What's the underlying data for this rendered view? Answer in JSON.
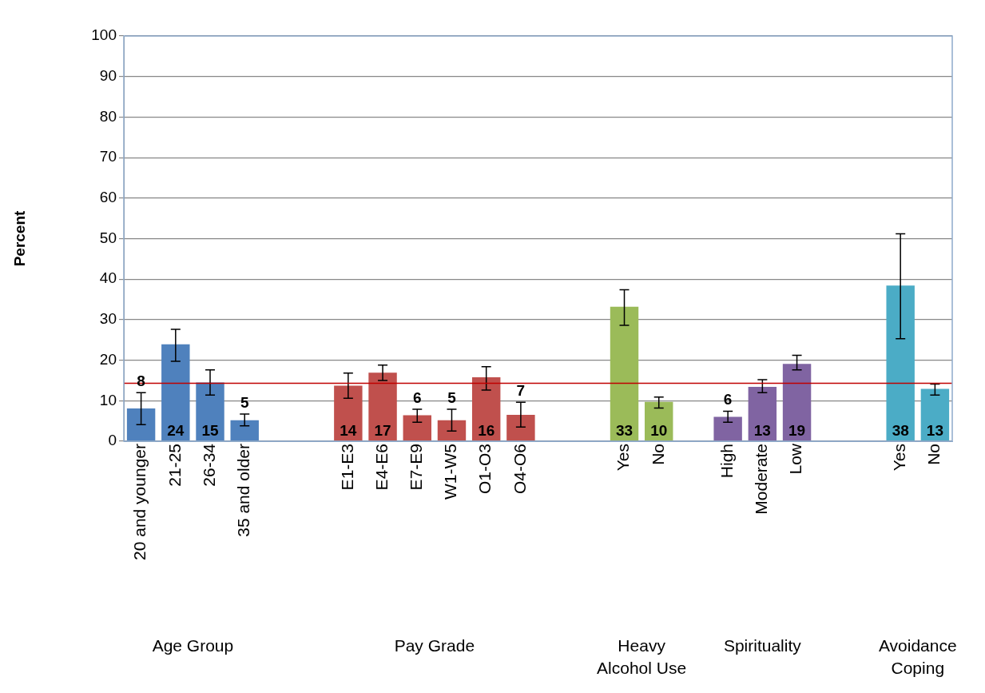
{
  "chart_data": {
    "type": "bar",
    "ylabel": "Percent",
    "categories": [
      "20 and younger",
      "21-25",
      "26-34",
      "35 and older",
      null,
      null,
      "E1-E3",
      "E4-E6",
      "E7-E9",
      "W1-W5",
      "O1-O3",
      "O4-O6",
      null,
      null,
      "Yes",
      "No",
      null,
      "High",
      "Moderate",
      "Low",
      null,
      null,
      "Yes",
      "No"
    ],
    "values": [
      8.1,
      23.9,
      14.5,
      5.2,
      null,
      null,
      13.7,
      16.9,
      6.4,
      5.2,
      15.8,
      6.5,
      null,
      null,
      33.2,
      9.7,
      null,
      6.0,
      13.4,
      19.1,
      null,
      null,
      38.4,
      12.9
    ],
    "colors": [
      "#4f81bd",
      "#4f81bd",
      "#4f81bd",
      "#4f81bd",
      "#4f81bd",
      "#4f81bd",
      "#c0504d",
      "#c0504d",
      "#c0504d",
      "#c0504d",
      "#c0504d",
      "#c0504d",
      "#c0504d",
      "#c0504d",
      "#9bbb59",
      "#9bbb59",
      "#9bbb59",
      "#8064a2",
      "#8064a2",
      "#8064a2",
      "#8064a2",
      "#8064a2",
      "#4bacc6",
      "#4bacc6"
    ],
    "errors": [
      [
        4.1,
        12
      ],
      [
        19.7,
        27.6
      ],
      [
        11.4,
        17.6
      ],
      [
        3.8,
        6.7
      ],
      null,
      null,
      [
        10.6,
        16.8
      ],
      [
        15.0,
        18.8
      ],
      [
        4.7,
        7.9
      ],
      [
        2.5,
        7.9
      ],
      [
        12.6,
        18.4
      ],
      [
        3.5,
        9.6
      ],
      null,
      null,
      [
        28.6,
        37.4
      ],
      [
        8.2,
        10.9
      ],
      null,
      [
        4.7,
        7.4
      ],
      [
        12.0,
        15.2
      ],
      [
        17.6,
        21.2
      ],
      null,
      null,
      [
        25.3,
        51.2
      ],
      [
        11.4,
        14.1
      ]
    ],
    "value_labels": [
      "8",
      "24",
      "15",
      "5",
      null,
      null,
      "14",
      "17",
      "6",
      "5",
      "16",
      "7",
      null,
      null,
      "33",
      "10",
      null,
      "6",
      "13",
      "19",
      null,
      null,
      "38",
      "13"
    ],
    "ylim": [
      0,
      100
    ],
    "yticks": [
      0,
      10,
      20,
      30,
      40,
      50,
      60,
      70,
      80,
      90,
      100
    ],
    "grid": "y",
    "legend": false,
    "ref_lines": [
      {
        "axis": "y",
        "value": 14.3,
        "color": "#c00000"
      }
    ],
    "annotations": [
      "Age Group",
      "Pay Grade",
      "Heavy Alcohol Use",
      "Spirituality",
      "Avoidance Coping"
    ]
  }
}
